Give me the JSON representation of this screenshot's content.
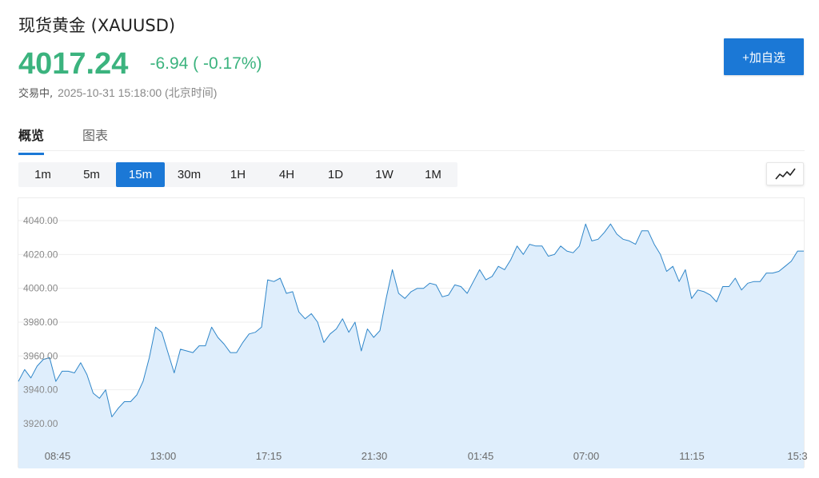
{
  "header": {
    "title": "现货黄金 (XAUUSD)",
    "price": "4017.24",
    "change": "-6.94 ( -0.17%)",
    "status": "交易中,",
    "timestamp": "2025-10-31 15:18:00 (北京时间)",
    "add_button": "+加自选"
  },
  "colors": {
    "accent": "#1b78d6",
    "price_green": "#3bb37e",
    "line": "#2f86c9",
    "area": "#dfeefc"
  },
  "tabs": [
    {
      "label": "概览",
      "active": true
    },
    {
      "label": "图表",
      "active": false
    }
  ],
  "intervals": [
    {
      "label": "1m",
      "active": false
    },
    {
      "label": "5m",
      "active": false
    },
    {
      "label": "15m",
      "active": true
    },
    {
      "label": "30m",
      "active": false
    },
    {
      "label": "1H",
      "active": false
    },
    {
      "label": "4H",
      "active": false
    },
    {
      "label": "1D",
      "active": false
    },
    {
      "label": "1W",
      "active": false
    },
    {
      "label": "1M",
      "active": false
    }
  ],
  "chart_type_icon": "line-chart-icon",
  "chart_data": {
    "type": "area",
    "y_ticks": [
      "4040.00",
      "4020.00",
      "4000.00",
      "3980.00",
      "3960.00",
      "3940.00",
      "3920.00"
    ],
    "x_ticks": [
      "08:45",
      "13:00",
      "17:15",
      "21:30",
      "01:45",
      "07:00",
      "11:15",
      "15:3"
    ],
    "ylim": [
      3915,
      4050
    ],
    "grid": true,
    "series": [
      {
        "values": [
          3945,
          3952,
          3947,
          3954,
          3958,
          3959,
          3945,
          3951,
          3951,
          3950,
          3956,
          3949,
          3938,
          3935,
          3940,
          3924,
          3929,
          3933,
          3933,
          3937,
          3945,
          3959,
          3977,
          3974,
          3962,
          3950,
          3964,
          3963,
          3962,
          3966,
          3966,
          3977,
          3971,
          3967,
          3962,
          3962,
          3968,
          3973,
          3974,
          3977,
          4005,
          4004,
          4006,
          3997,
          3998,
          3986,
          3982,
          3985,
          3980,
          3968,
          3973,
          3976,
          3982,
          3974,
          3980,
          3963,
          3976,
          3971,
          3975,
          3994,
          4011,
          3997,
          3994,
          3998,
          4000,
          4000,
          4003,
          4002,
          3995,
          3996,
          4002,
          4001,
          3997,
          4004,
          4011,
          4005,
          4007,
          4013,
          4011,
          4017,
          4025,
          4020,
          4026,
          4025,
          4025,
          4019,
          4020,
          4025,
          4022,
          4021,
          4025,
          4038,
          4028,
          4029,
          4033,
          4038,
          4032,
          4029,
          4028,
          4026,
          4034,
          4034,
          4026,
          4020,
          4010,
          4013,
          4004,
          4011,
          3994,
          3999,
          3998,
          3996,
          3992,
          4001,
          4001,
          4006,
          3999,
          4003,
          4004,
          4004,
          4009,
          4009,
          4010,
          4013,
          4016,
          4022,
          4022
        ]
      }
    ]
  }
}
